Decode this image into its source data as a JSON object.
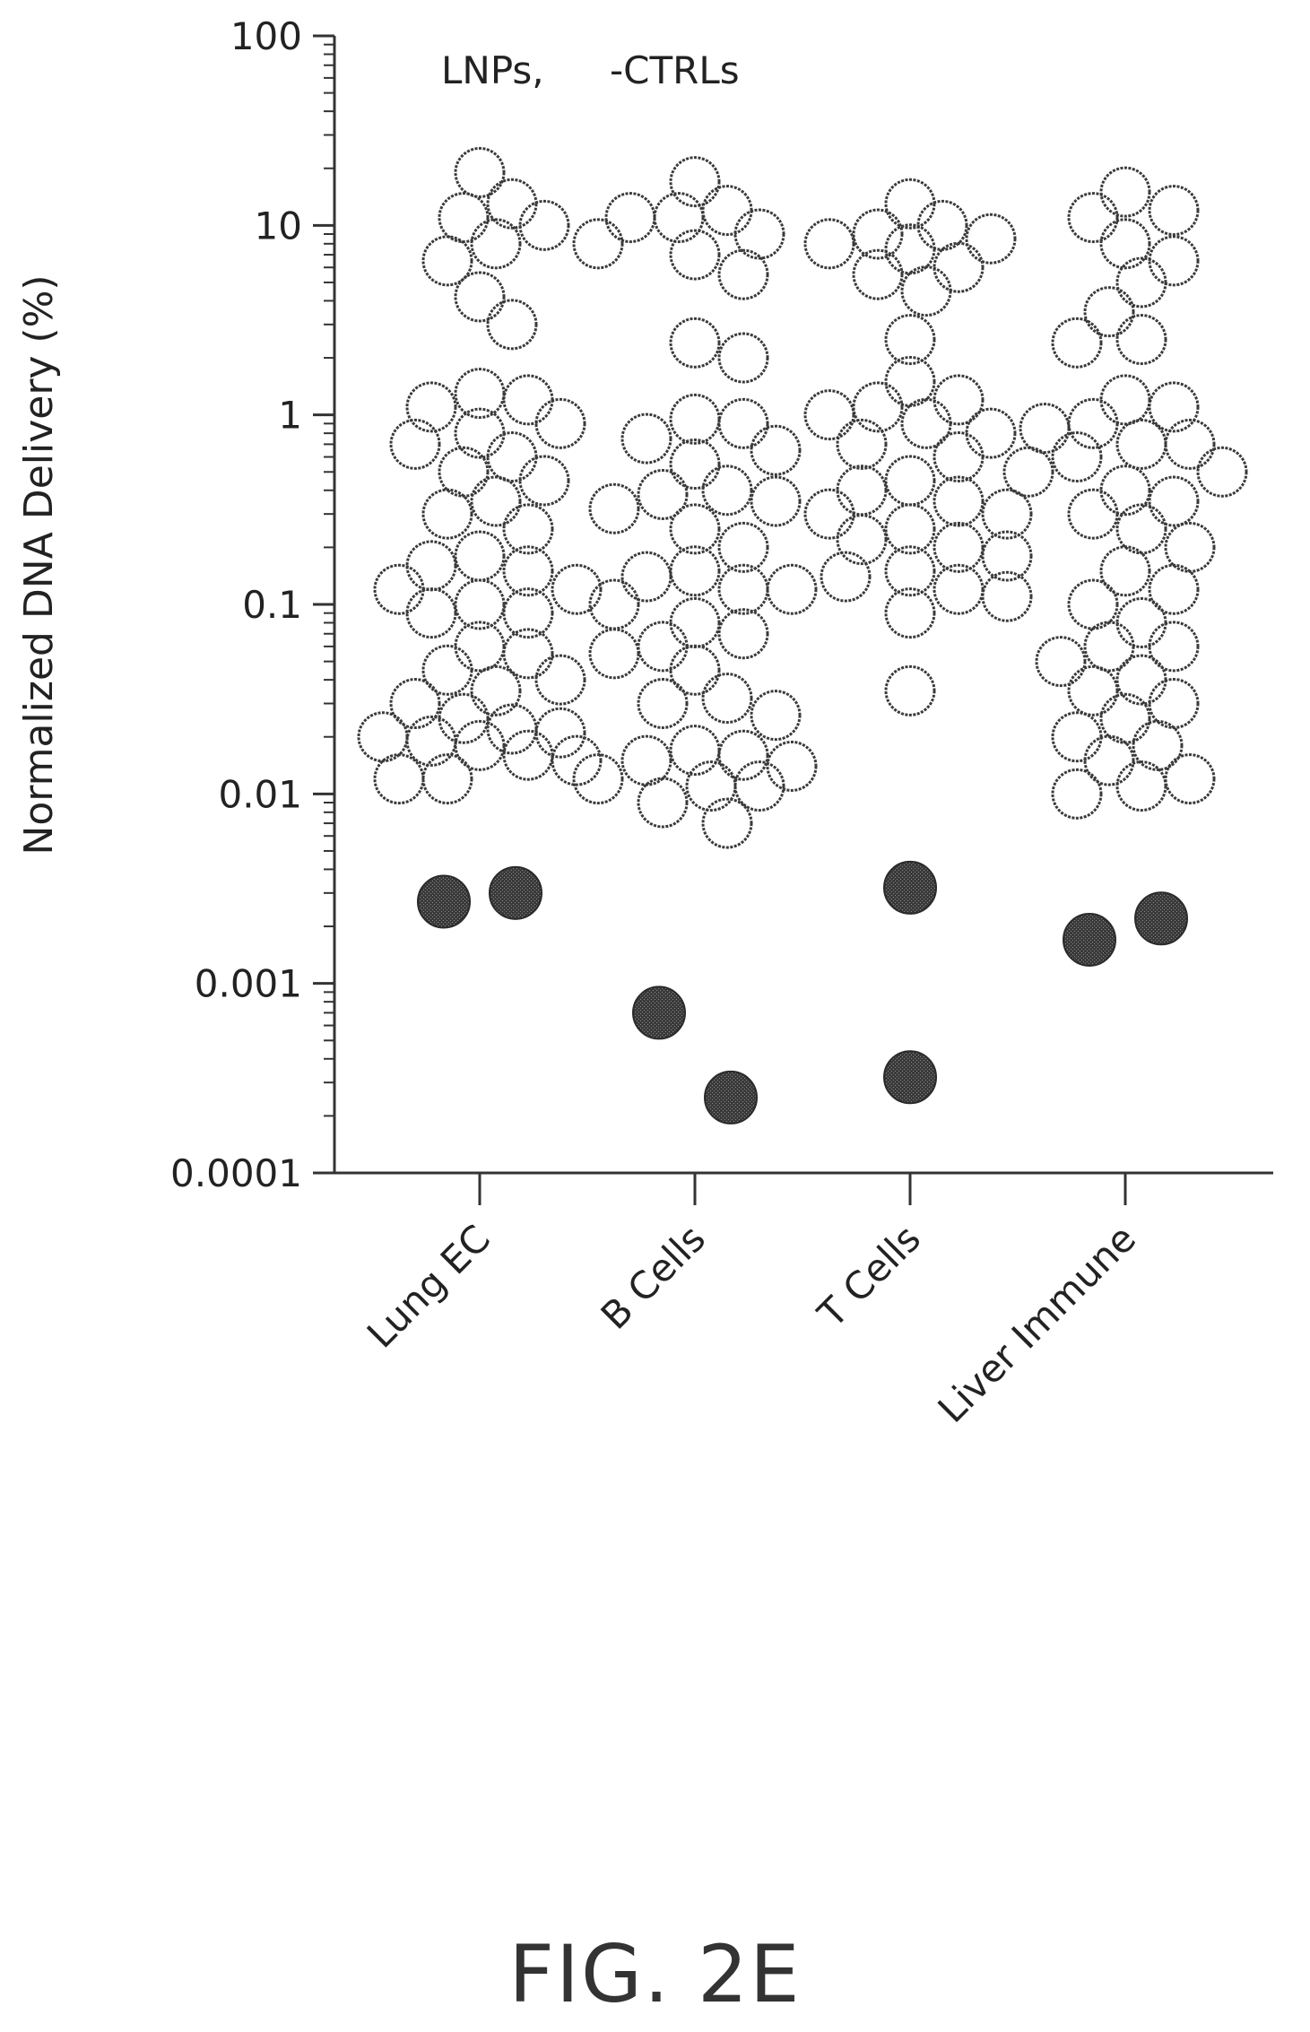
{
  "figure_label": "FIG. 2E",
  "chart_data": {
    "type": "scatter",
    "title": "",
    "legend_text": [
      "LNPs,",
      "-CTRLs"
    ],
    "ylabel": "Normalized DNA Delivery (%)",
    "xlabel": "",
    "yscale": "log",
    "ylim": [
      0.0001,
      100
    ],
    "yticks": [
      "100",
      "10",
      "1",
      "0.1",
      "0.01",
      "0.001",
      "0.0001"
    ],
    "categories": [
      "Lung EC",
      "B Cells",
      "T Cells",
      "Liver Immune"
    ],
    "grid": false,
    "series": [
      {
        "name": "LNPs",
        "marker": "open-circle",
        "values": [
          [
            13,
            10,
            6.5,
            8,
            11,
            19,
            4.2,
            3,
            1.2,
            0.9,
            0.8,
            0.6,
            0.45,
            0.35,
            1.3,
            1.1,
            0.7,
            0.5,
            0.3,
            0.25,
            0.18,
            0.15,
            0.12,
            0.1,
            0.09,
            0.16,
            0.12,
            0.09,
            0.06,
            0.045,
            0.035,
            0.055,
            0.04,
            0.03,
            0.022,
            0.018,
            0.015,
            0.012,
            0.02,
            0.025,
            0.016,
            0.012,
            0.021,
            0.019
          ],
          [
            11,
            8,
            12,
            17,
            9,
            5.5,
            7,
            11,
            2.4,
            2,
            0.9,
            0.75,
            0.55,
            0.4,
            0.32,
            0.35,
            0.25,
            0.15,
            0.12,
            0.1,
            0.08,
            0.95,
            0.65,
            0.38,
            0.2,
            0.14,
            0.12,
            0.06,
            0.045,
            0.032,
            0.026,
            0.055,
            0.07,
            0.03,
            0.017,
            0.014,
            0.011,
            0.009,
            0.007,
            0.015,
            0.012,
            0.016,
            0.011
          ],
          [
            13,
            9,
            8,
            6,
            4.5,
            8.5,
            5.5,
            7.5,
            10,
            2.5,
            1.2,
            1.0,
            0.8,
            0.6,
            1.5,
            1.1,
            0.9,
            0.7,
            0.45,
            0.35,
            0.3,
            0.25,
            0.2,
            0.15,
            0.12,
            0.4,
            0.3,
            0.22,
            0.18,
            0.14,
            0.11,
            0.09,
            0.035
          ],
          [
            15,
            11,
            8,
            5,
            3.5,
            6.5,
            12,
            2.5,
            2.4,
            1.1,
            0.9,
            0.7,
            0.5,
            0.35,
            0.25,
            1.2,
            0.85,
            0.6,
            0.4,
            0.3,
            0.15,
            0.1,
            0.06,
            0.04,
            0.03,
            0.2,
            0.12,
            0.08,
            0.05,
            0.035,
            0.025,
            0.02,
            0.015,
            0.012,
            0.01,
            0.011,
            0.7,
            0.5,
            0.06,
            0.018
          ]
        ]
      },
      {
        "name": "-CTRLs",
        "marker": "filled-circle",
        "values": [
          [
            0.0027,
            0.003
          ],
          [
            0.0007,
            0.00025
          ],
          [
            0.0032,
            0.00032
          ],
          [
            0.0017,
            0.0022
          ]
        ]
      }
    ]
  }
}
